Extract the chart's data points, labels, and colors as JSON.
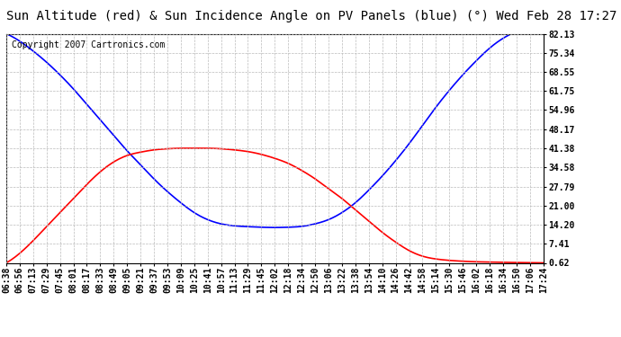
{
  "title": "Sun Altitude (red) & Sun Incidence Angle on PV Panels (blue) (°) Wed Feb 28 17:27",
  "copyright": "Copyright 2007 Cartronics.com",
  "yticks": [
    0.62,
    7.41,
    14.2,
    21.0,
    27.79,
    34.58,
    41.38,
    48.17,
    54.96,
    61.75,
    68.55,
    75.34,
    82.13
  ],
  "ylim_min": 0.62,
  "ylim_max": 82.13,
  "time_labels": [
    "06:38",
    "06:56",
    "07:13",
    "07:29",
    "07:45",
    "08:01",
    "08:17",
    "08:33",
    "08:49",
    "09:05",
    "09:21",
    "09:37",
    "09:53",
    "10:09",
    "10:25",
    "10:41",
    "10:57",
    "11:13",
    "11:29",
    "11:45",
    "12:02",
    "12:18",
    "12:34",
    "12:50",
    "13:06",
    "13:22",
    "13:38",
    "13:54",
    "14:10",
    "14:26",
    "14:42",
    "14:58",
    "15:14",
    "15:30",
    "15:46",
    "16:02",
    "16:18",
    "16:34",
    "16:50",
    "17:06",
    "17:24"
  ],
  "blue_y": [
    82.13,
    79.5,
    76.0,
    72.0,
    67.5,
    62.5,
    57.0,
    51.5,
    46.0,
    40.5,
    35.5,
    30.5,
    26.0,
    22.0,
    18.5,
    16.0,
    14.5,
    13.8,
    13.5,
    13.3,
    13.2,
    13.3,
    13.6,
    14.5,
    16.0,
    18.5,
    22.0,
    26.5,
    31.5,
    37.0,
    43.0,
    49.5,
    56.0,
    62.0,
    67.5,
    72.5,
    77.0,
    80.5,
    83.0,
    84.5,
    82.13
  ],
  "red_y": [
    0.62,
    4.0,
    8.5,
    13.5,
    18.5,
    23.5,
    28.5,
    33.0,
    36.5,
    38.8,
    40.0,
    40.8,
    41.2,
    41.38,
    41.38,
    41.38,
    41.2,
    40.8,
    40.2,
    39.2,
    37.8,
    36.0,
    33.5,
    30.5,
    27.0,
    23.5,
    19.5,
    15.5,
    11.5,
    8.0,
    5.0,
    3.0,
    2.0,
    1.5,
    1.2,
    1.0,
    0.9,
    0.8,
    0.75,
    0.7,
    0.62
  ],
  "background_color": "#ffffff",
  "grid_color": "#bbbbbb",
  "blue_color": "#0000ff",
  "red_color": "#ff0000",
  "title_fontsize": 10,
  "tick_fontsize": 7,
  "copyright_fontsize": 7
}
